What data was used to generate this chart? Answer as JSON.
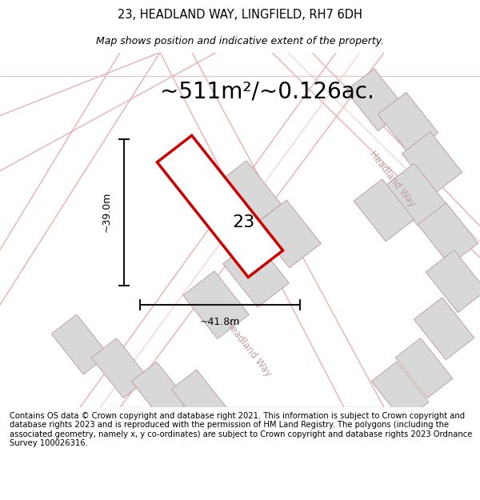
{
  "title": "23, HEADLAND WAY, LINGFIELD, RH7 6DH",
  "subtitle": "Map shows position and indicative extent of the property.",
  "area_text": "~511m²/~0.126ac.",
  "label_23": "23",
  "dim_width": "~41.8m",
  "dim_height": "~39.0m",
  "road_label_upper": "Headland Way",
  "road_label_lower": "Headland Way",
  "footer": "Contains OS data © Crown copyright and database right 2021. This information is subject to Crown copyright and database rights 2023 and is reproduced with the permission of HM Land Registry. The polygons (including the associated geometry, namely x, y co-ordinates) are subject to Crown copyright and database rights 2023 Ordnance Survey 100026316.",
  "bg_color": "#ffffff",
  "map_bg": "#ffffff",
  "block_fill": "#d8d8d8",
  "block_edge": "#c0a0a0",
  "highlight_color": "#cc0000",
  "road_line_color": "#e8b0b0",
  "dim_color": "#111111",
  "footer_fontsize": 7.2,
  "title_fontsize": 10.5,
  "subtitle_fontsize": 9,
  "area_fontsize": 20,
  "label_fontsize": 16,
  "road_label_fontsize": 8.5
}
